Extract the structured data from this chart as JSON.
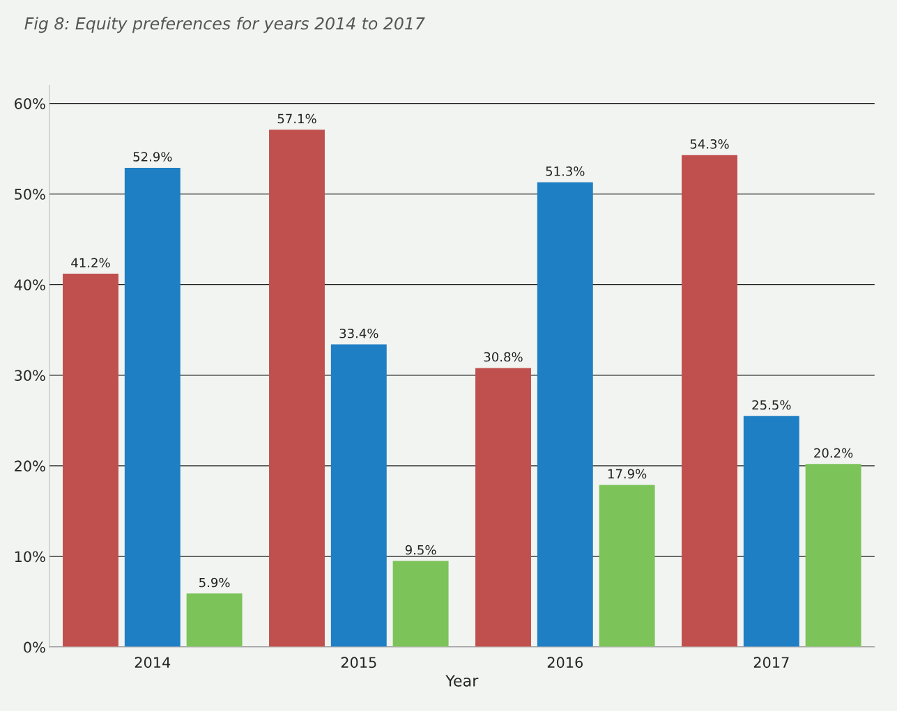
{
  "chart_data": {
    "type": "bar",
    "title": "Fig 8: Equity preferences for years 2014 to 2017",
    "xlabel": "Year",
    "categories": [
      "2014",
      "2015",
      "2016",
      "2017"
    ],
    "series": [
      {
        "color": "#c0504d",
        "values": [
          41.2,
          57.1,
          30.8,
          54.3
        ]
      },
      {
        "color": "#1f7fc4",
        "values": [
          52.9,
          33.4,
          51.3,
          25.5
        ]
      },
      {
        "color": "#7cc35a",
        "values": [
          5.9,
          9.5,
          17.9,
          20.2
        ]
      }
    ],
    "value_labels": [
      [
        "41.2%",
        "57.1%",
        "30.8%",
        "54.3%"
      ],
      [
        "52.9%",
        "33.4%",
        "51.3%",
        "25.5%"
      ],
      [
        "5.9%",
        "9.5%",
        "17.9%",
        "20.2%"
      ]
    ],
    "ylim": [
      0,
      62
    ],
    "yticks": [
      {
        "value": 0,
        "label": "0%"
      },
      {
        "value": 10,
        "label": "10%"
      },
      {
        "value": 20,
        "label": "20%"
      },
      {
        "value": 30,
        "label": "30%"
      },
      {
        "value": 40,
        "label": "40%"
      },
      {
        "value": 50,
        "label": "50%"
      },
      {
        "value": 60,
        "label": "60%"
      }
    ],
    "grid": "y",
    "legend": false
  }
}
